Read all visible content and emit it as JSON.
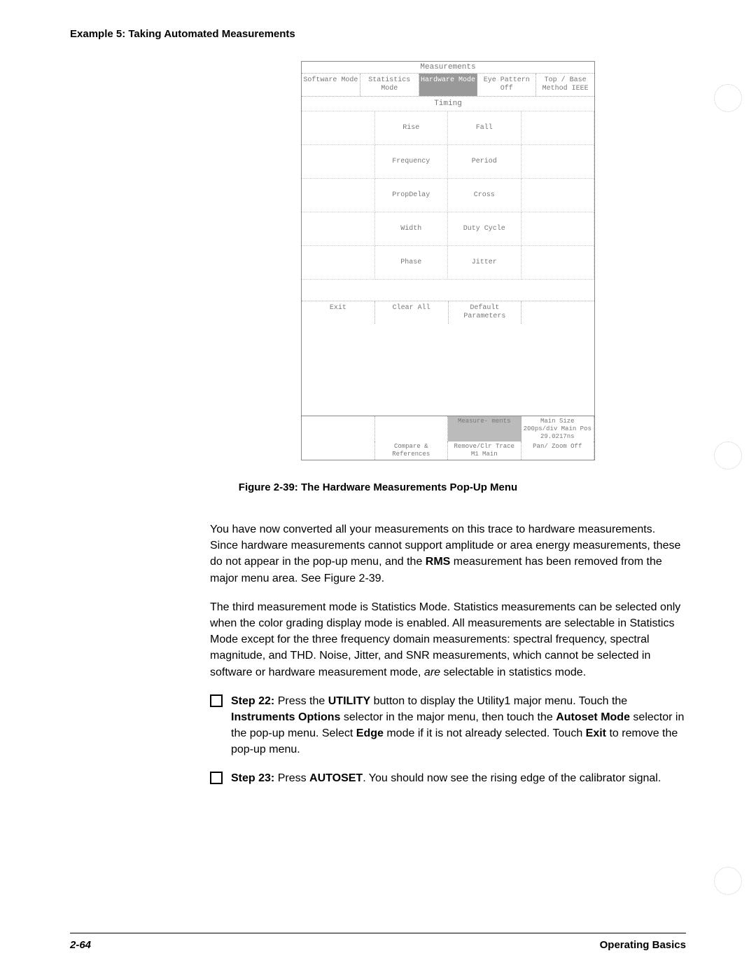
{
  "header": "Example 5: Taking Automated Measurements",
  "menu": {
    "title": "Measurements",
    "topRow": [
      "Software\nMode",
      "Statistics\nMode",
      "Hardware\nMode",
      "Eye\nPattern\nOff",
      "Top / Base\nMethod\nIEEE"
    ],
    "selectedTop": 2,
    "timingTitle": "Timing",
    "grid": [
      [
        "",
        "Rise",
        "Fall",
        ""
      ],
      [
        "",
        "Frequency",
        "Period",
        ""
      ],
      [
        "",
        "PropDelay",
        "Cross",
        ""
      ],
      [
        "",
        "Width",
        "Duty\nCycle",
        ""
      ],
      [
        "",
        "Phase",
        "Jitter",
        ""
      ]
    ],
    "bottomRow": [
      "Exit",
      "Clear All",
      "Default\nParameters",
      ""
    ],
    "status": {
      "row1": [
        "",
        "",
        "Measure-\nments",
        "Main Size\n200ps/div\nMain Pos\n29.0217ns"
      ],
      "row2": [
        "",
        "Compare &\nReferences",
        "Remove/Clr\nTrace\nM1\nMain",
        "Pan/\nZoom\nOff"
      ],
      "sel1": 2
    }
  },
  "caption": "Figure 2-39: The Hardware Measurements Pop-Up Menu",
  "para1a": "You have now converted all your measurements on this trace to hardware measurements. Since hardware measurements cannot support amplitude or area energy measurements, these do not appear in the pop-up menu, and the ",
  "para1b": "RMS",
  "para1c": " measurement has been removed from the major menu area. See Figure 2-39.",
  "para2a": "The third measurement mode is Statistics Mode. Statistics measurements can be selected only when the color grading display mode is enabled. All measurements are selectable in Statistics Mode except for the three frequency domain measurements: spectral frequency, spectral magnitude, and THD. Noise, Jitter, and SNR measurements, which cannot be selected in software or hardware measurement mode, ",
  "para2b": "are",
  "para2c": " selectable in statistics mode.",
  "step22": {
    "label": "Step 22:",
    "t1": "  Press the ",
    "b1": "UTILITY",
    "t2": " button to display the Utility1 major menu. Touch the ",
    "b2": "Instruments Options",
    "t3": " selector in the major menu, then touch the ",
    "b3": "Autoset Mode",
    "t4": " selector in the pop-up menu. Select ",
    "b4": "Edge",
    "t5": " mode if it is not already selected. Touch ",
    "b5": "Exit",
    "t6": " to remove the pop-up menu."
  },
  "step23": {
    "label": "Step 23:",
    "t1": "  Press ",
    "b1": "AUTOSET",
    "t2": ". You should now see the rising edge of the calibrator signal."
  },
  "footerLeft": "2-64",
  "footerRight": "Operating Basics"
}
